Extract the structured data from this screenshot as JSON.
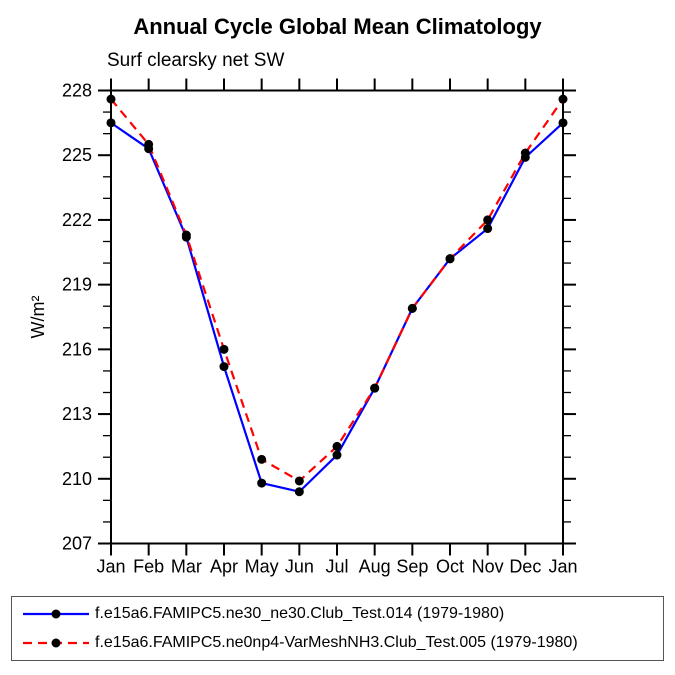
{
  "chart_data": {
    "type": "line",
    "title": "Annual Cycle Global Mean Climatology",
    "subtitle": "Surf clearsky net SW",
    "xlabel": "",
    "ylabel": "W/m²",
    "categories": [
      "Jan",
      "Feb",
      "Mar",
      "Apr",
      "May",
      "Jun",
      "Jul",
      "Aug",
      "Sep",
      "Oct",
      "Nov",
      "Dec",
      "Jan"
    ],
    "ylim": [
      207,
      228
    ],
    "yticks": [
      207,
      210,
      213,
      216,
      219,
      222,
      225,
      228
    ],
    "ytick_minor_step": 1,
    "grid": false,
    "legend_position": "bottom",
    "axis_color": "#000000",
    "marker": {
      "shape": "circle",
      "color": "#000000"
    },
    "series": [
      {
        "name": "f.e15a6.FAMIPC5.ne30_ne30.Club_Test.014 (1979-1980)",
        "color": "#0000ff",
        "style": "solid",
        "values": [
          226.5,
          225.3,
          221.2,
          215.2,
          209.8,
          209.4,
          211.1,
          214.2,
          217.9,
          220.2,
          221.6,
          224.9,
          226.5
        ]
      },
      {
        "name": "f.e15a6.FAMIPC5.ne0np4-VarMeshNH3.Club_Test.005 (1979-1980)",
        "color": "#ff0000",
        "style": "dashed",
        "values": [
          227.6,
          225.5,
          221.3,
          216.0,
          210.9,
          209.9,
          211.5,
          214.2,
          217.9,
          220.2,
          222.0,
          225.1,
          227.6
        ]
      }
    ]
  }
}
